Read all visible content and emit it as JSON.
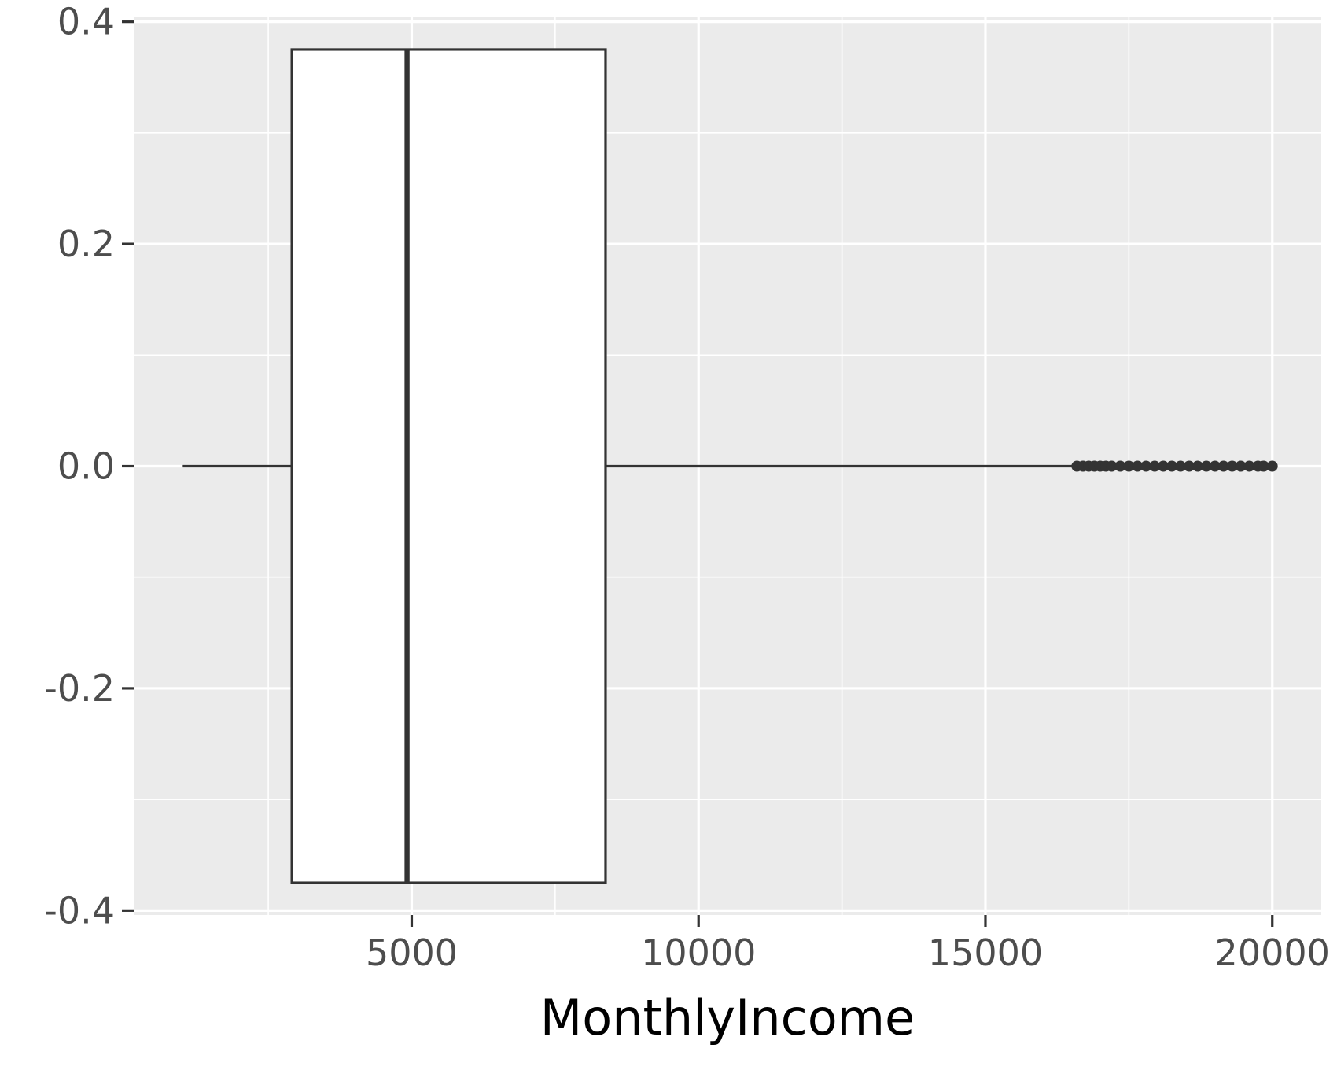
{
  "chart_data": {
    "type": "boxplot",
    "title": "",
    "xlabel": "MonthlyIncome",
    "ylabel": "",
    "orientation": "horizontal",
    "xlim": [
      1009,
      19999
    ],
    "ylim": [
      -0.4,
      0.4
    ],
    "x_ticks": [
      5000,
      10000,
      15000,
      20000
    ],
    "x_tick_labels": [
      "5000",
      "10000",
      "15000",
      "20000"
    ],
    "y_ticks": [
      -0.4,
      -0.2,
      0.0,
      0.2,
      0.4
    ],
    "y_tick_labels": [
      "-0.4",
      "-0.2",
      "0.0",
      "0.2",
      "0.4"
    ],
    "grid": true,
    "colors": {
      "panel": "#ebebeb",
      "grid": "#ffffff",
      "box_fill": "#ffffff",
      "line": "#333333"
    },
    "box": {
      "y": 0.0,
      "half_width": 0.375,
      "whisker_low": 1009,
      "q1": 2911,
      "median": 4919,
      "q3": 8379,
      "whisker_high": 16595
    },
    "outliers": [
      16595,
      16700,
      16800,
      16900,
      17000,
      17100,
      17200,
      17350,
      17500,
      17650,
      17800,
      17950,
      18100,
      18250,
      18400,
      18550,
      18700,
      18850,
      19000,
      19150,
      19300,
      19450,
      19600,
      19750,
      19850,
      19999
    ]
  }
}
